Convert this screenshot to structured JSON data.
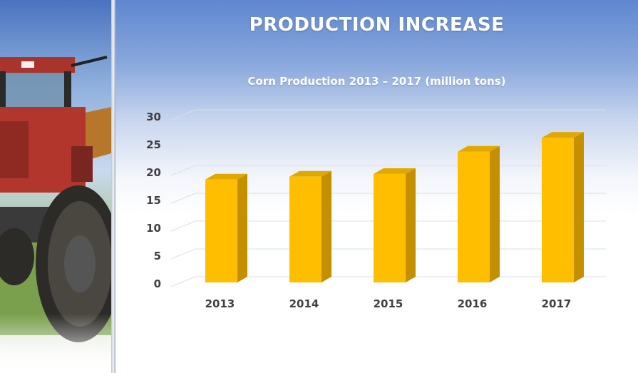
{
  "slide": {
    "title": "PRODUCTION INCREASE"
  },
  "image": {
    "subject": "tractor-photo"
  },
  "colors": {
    "bar_front": "#ffbe00",
    "bar_side": "#c48f00",
    "bar_top": "#e0a800",
    "axis_label": "#404040",
    "grid": "#d9dfe8"
  },
  "chart_data": {
    "type": "bar",
    "title": "Corn Production 2013 – 2017 (million tons)",
    "categories": [
      "2013",
      "2014",
      "2015",
      "2016",
      "2017"
    ],
    "values": [
      18.5,
      19,
      19.5,
      23.5,
      26
    ],
    "ylim": [
      0,
      30
    ],
    "yticks": [
      "0",
      "5",
      "10",
      "15",
      "20",
      "25",
      "30"
    ],
    "xlabel": "",
    "ylabel": "",
    "grid": true,
    "style": "3d-column"
  }
}
